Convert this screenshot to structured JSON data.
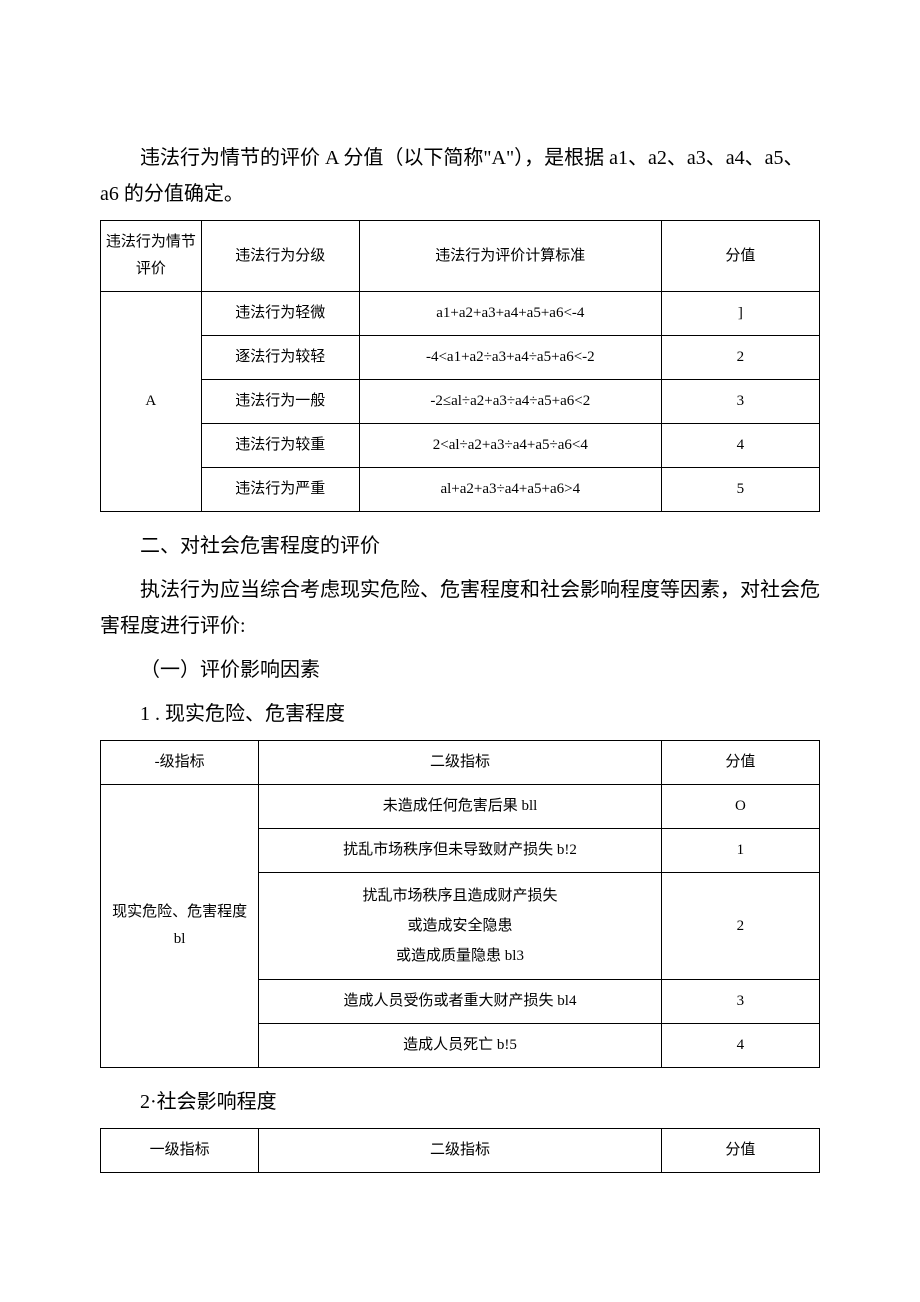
{
  "intro": {
    "para1": "违法行为情节的评价 A 分值（以下简称\"A\"），是根据 a1、a2、a3、a4、a5、a6 的分值确定。"
  },
  "table1": {
    "headers": {
      "col1": "违法行为情节评价",
      "col2": "违法行为分级",
      "col3": "违法行为评价计算标准",
      "col4": "分值"
    },
    "rowspan_label": "A",
    "rows": [
      {
        "level": "违法行为轻微",
        "formula": "a1+a2+a3+a4+a5+a6<-4",
        "score": "]"
      },
      {
        "level": "逐法行为较轻",
        "formula": "-4<a1+a2÷a3+a4÷a5+a6<-2",
        "score": "2"
      },
      {
        "level": "违法行为一般",
        "formula": "-2≤al÷a2+a3÷a4÷a5+a6<2",
        "score": "3"
      },
      {
        "level": "违法行为较重",
        "formula": "2<al÷a2+a3÷a4+a5÷a6<4",
        "score": "4"
      },
      {
        "level": "违法行为严重",
        "formula": "al+a2+a3÷a4+a5+a6>4",
        "score": "5"
      }
    ]
  },
  "section2": {
    "heading": "二、对社会危害程度的评价",
    "para": "执法行为应当综合考虑现实危险、危害程度和社会影响程度等因素，对社会危害程度进行评价:",
    "sub1_heading": "（一）评价影响因素",
    "item1_heading": "1 . 现实危险、危害程度",
    "item2_heading": "2·社会影响程度"
  },
  "table2": {
    "headers": {
      "col1": "-级指标",
      "col2": "二级指标",
      "col3": "分值"
    },
    "rowspan_label": "现实危险、危害程度 bl",
    "rows": [
      {
        "indicator": "未造成任何危害后果 bll",
        "score": "O"
      },
      {
        "indicator": "扰乱市场秩序但未导致财产损失 b!2",
        "score": "1"
      },
      {
        "indicator": "扰乱市场秩序且造成财产损失\n或造成安全隐患\n或造成质量隐患 bl3",
        "score": "2"
      },
      {
        "indicator": "造成人员受伤或者重大财产损失 bl4",
        "score": "3"
      },
      {
        "indicator": "造成人员死亡 b!5",
        "score": "4"
      }
    ]
  },
  "table3": {
    "headers": {
      "col1": "一级指标",
      "col2": "二级指标",
      "col3": "分值"
    }
  }
}
